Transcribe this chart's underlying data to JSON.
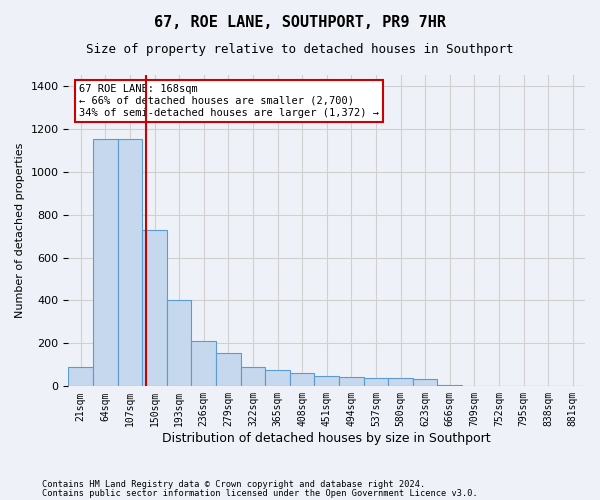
{
  "title": "67, ROE LANE, SOUTHPORT, PR9 7HR",
  "subtitle": "Size of property relative to detached houses in Southport",
  "xlabel": "Distribution of detached houses by size in Southport",
  "ylabel": "Number of detached properties",
  "footer1": "Contains HM Land Registry data © Crown copyright and database right 2024.",
  "footer2": "Contains public sector information licensed under the Open Government Licence v3.0.",
  "categories": [
    "21sqm",
    "64sqm",
    "107sqm",
    "150sqm",
    "193sqm",
    "236sqm",
    "279sqm",
    "322sqm",
    "365sqm",
    "408sqm",
    "451sqm",
    "494sqm",
    "537sqm",
    "580sqm",
    "623sqm",
    "666sqm",
    "709sqm",
    "752sqm",
    "795sqm",
    "838sqm",
    "881sqm"
  ],
  "values": [
    90,
    1150,
    1150,
    730,
    400,
    210,
    155,
    90,
    75,
    60,
    50,
    45,
    40,
    40,
    35,
    5,
    0,
    0,
    0,
    0,
    0
  ],
  "bar_color": "#c5d8ed",
  "bar_edge_color": "#5b9bd5",
  "grid_color": "#d0d0d0",
  "annotation_line1": "67 ROE LANE: 168sqm",
  "annotation_line2": "← 66% of detached houses are smaller (2,700)",
  "annotation_line3": "34% of semi-detached houses are larger (1,372) →",
  "annotation_box_color": "#ffffff",
  "annotation_border_color": "#cc0000",
  "vline_color": "#cc0000",
  "vline_x": 2.67,
  "ylim": [
    0,
    1450
  ],
  "yticks": [
    0,
    200,
    400,
    600,
    800,
    1000,
    1200,
    1400
  ],
  "background_color": "#eef2f8"
}
